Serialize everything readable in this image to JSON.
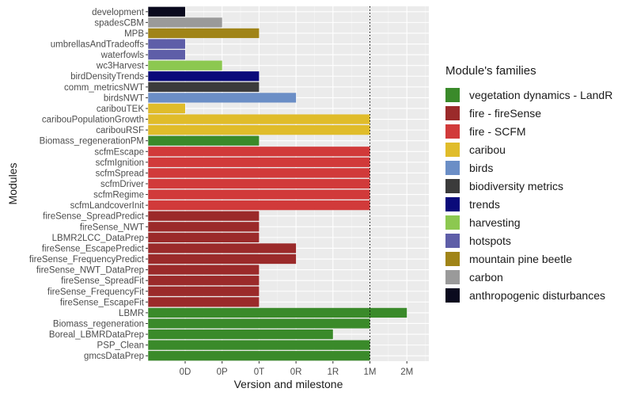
{
  "chart_data": {
    "type": "bar",
    "orientation": "horizontal",
    "xlabel": "Version and milestone",
    "ylabel": "Modules",
    "x_ticks": [
      "0D",
      "0P",
      "0T",
      "0R",
      "1R",
      "1M",
      "2M"
    ],
    "reference_line": "1M",
    "grid": true,
    "legend_position": "right",
    "legend": {
      "title": "Module's families",
      "entries": [
        {
          "name": "vegetation dynamics - LandR",
          "color": "#3a8a2a"
        },
        {
          "name": "fire - fireSense",
          "color": "#9b2a2a"
        },
        {
          "name": "fire - SCFM",
          "color": "#d13a3a"
        },
        {
          "name": "caribou",
          "color": "#e0bc2a"
        },
        {
          "name": "birds",
          "color": "#6b8ec6"
        },
        {
          "name": "biodiversity metrics",
          "color": "#3b3b3b"
        },
        {
          "name": "trends",
          "color": "#0a0a7a"
        },
        {
          "name": "harvesting",
          "color": "#8cc850"
        },
        {
          "name": "hotspots",
          "color": "#5e5ea8"
        },
        {
          "name": "mountain pine beetle",
          "color": "#a08418"
        },
        {
          "name": "carbon",
          "color": "#9a9a9a"
        },
        {
          "name": "anthropogenic disturbances",
          "color": "#0a0a1e"
        }
      ]
    },
    "bars": [
      {
        "module": "development",
        "value": "0D",
        "family": "anthropogenic disturbances"
      },
      {
        "module": "spadesCBM",
        "value": "0P",
        "family": "carbon"
      },
      {
        "module": "MPB",
        "value": "0T",
        "family": "mountain pine beetle"
      },
      {
        "module": "umbrellasAndTradeoffs",
        "value": "0D",
        "family": "hotspots"
      },
      {
        "module": "waterfowls",
        "value": "0D",
        "family": "hotspots"
      },
      {
        "module": "wc3Harvest",
        "value": "0P",
        "family": "harvesting"
      },
      {
        "module": "birdDensityTrends",
        "value": "0T",
        "family": "trends"
      },
      {
        "module": "comm_metricsNWT",
        "value": "0T",
        "family": "biodiversity metrics"
      },
      {
        "module": "birdsNWT",
        "value": "0R",
        "family": "birds"
      },
      {
        "module": "caribouTEK",
        "value": "0D",
        "family": "caribou"
      },
      {
        "module": "caribouPopulationGrowth",
        "value": "1M",
        "family": "caribou"
      },
      {
        "module": "caribouRSF",
        "value": "1M",
        "family": "caribou"
      },
      {
        "module": "Biomass_regenerationPM",
        "value": "0T",
        "family": "vegetation dynamics - LandR"
      },
      {
        "module": "scfmEscape",
        "value": "1M",
        "family": "fire - SCFM"
      },
      {
        "module": "scfmIgnition",
        "value": "1M",
        "family": "fire - SCFM"
      },
      {
        "module": "scfmSpread",
        "value": "1M",
        "family": "fire - SCFM"
      },
      {
        "module": "scfmDriver",
        "value": "1M",
        "family": "fire - SCFM"
      },
      {
        "module": "scfmRegime",
        "value": "1M",
        "family": "fire - SCFM"
      },
      {
        "module": "scfmLandcoverInit",
        "value": "1M",
        "family": "fire - SCFM"
      },
      {
        "module": "fireSense_SpreadPredict",
        "value": "0T",
        "family": "fire - fireSense"
      },
      {
        "module": "fireSense_NWT",
        "value": "0T",
        "family": "fire - fireSense"
      },
      {
        "module": "LBMR2LCC_DataPrep",
        "value": "0T",
        "family": "fire - fireSense"
      },
      {
        "module": "fireSense_EscapePredict",
        "value": "0R",
        "family": "fire - fireSense"
      },
      {
        "module": "fireSense_FrequencyPredict",
        "value": "0R",
        "family": "fire - fireSense"
      },
      {
        "module": "fireSense_NWT_DataPrep",
        "value": "0T",
        "family": "fire - fireSense"
      },
      {
        "module": "fireSense_SpreadFit",
        "value": "0T",
        "family": "fire - fireSense"
      },
      {
        "module": "fireSense_FrequencyFit",
        "value": "0T",
        "family": "fire - fireSense"
      },
      {
        "module": "fireSense_EscapeFit",
        "value": "0T",
        "family": "fire - fireSense"
      },
      {
        "module": "LBMR",
        "value": "2M",
        "family": "vegetation dynamics - LandR"
      },
      {
        "module": "Biomass_regeneration",
        "value": "1M",
        "family": "vegetation dynamics - LandR"
      },
      {
        "module": "Boreal_LBMRDataPrep",
        "value": "1R",
        "family": "vegetation dynamics - LandR"
      },
      {
        "module": "PSP_Clean",
        "value": "1M",
        "family": "vegetation dynamics - LandR"
      },
      {
        "module": "gmcsDataPrep",
        "value": "1M",
        "family": "vegetation dynamics - LandR"
      }
    ]
  }
}
